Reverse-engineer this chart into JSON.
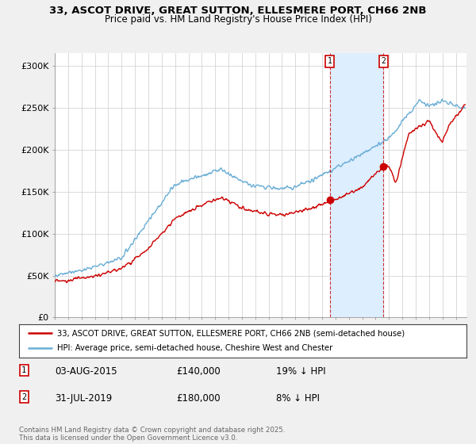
{
  "title_line1": "33, ASCOT DRIVE, GREAT SUTTON, ELLESMERE PORT, CH66 2NB",
  "title_line2": "Price paid vs. HM Land Registry's House Price Index (HPI)",
  "ylabel_ticks": [
    "£0",
    "£50K",
    "£100K",
    "£150K",
    "£200K",
    "£250K",
    "£300K"
  ],
  "ytick_values": [
    0,
    50000,
    100000,
    150000,
    200000,
    250000,
    300000
  ],
  "ylim": [
    0,
    315000
  ],
  "xlim_start": 1995.0,
  "xlim_end": 2025.8,
  "marker1_date": 2015.58,
  "marker1_price": 140000,
  "marker1_label": "03-AUG-2015",
  "marker1_price_str": "£140,000",
  "marker1_pct": "19% ↓ HPI",
  "marker2_date": 2019.58,
  "marker2_price": 180000,
  "marker2_label": "31-JUL-2019",
  "marker2_price_str": "£180,000",
  "marker2_pct": "8% ↓ HPI",
  "legend_line1": "33, ASCOT DRIVE, GREAT SUTTON, ELLESMERE PORT, CH66 2NB (semi-detached house)",
  "legend_line2": "HPI: Average price, semi-detached house, Cheshire West and Chester",
  "footer": "Contains HM Land Registry data © Crown copyright and database right 2025.\nThis data is licensed under the Open Government Licence v3.0.",
  "hpi_color": "#6baed6",
  "price_color": "#cc0000",
  "shade_color": "#ddeeff",
  "background_color": "#f0f0f0",
  "plot_bg_color": "#ffffff",
  "grid_color": "#cccccc"
}
